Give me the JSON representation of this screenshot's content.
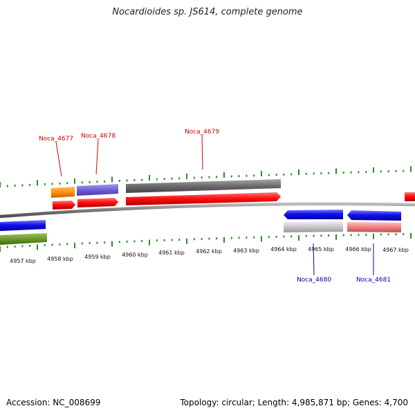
{
  "title": "Nocardioides sp. JS614, complete genome",
  "footer": {
    "accession": "Accession: NC_008699",
    "summary": "Topology: circular; Length: 4,985,871 bp; Genes: 4,700"
  },
  "scale": {
    "unit": "kbp",
    "tick_labels": [
      "4957 kbp",
      "4958 kbp",
      "4959 kbp",
      "4960 kbp",
      "4961 kbp",
      "4962 kbp",
      "4963 kbp",
      "4964 kbp",
      "4965 kbp",
      "4966 kbp",
      "4967 kbp"
    ]
  },
  "colors": {
    "forward_gene": "#ee1111",
    "reverse_gene": "#1a1ae6",
    "tick": "#2a8a2a",
    "backbone": "#808080",
    "label_forward": "#cc0000",
    "label_reverse": "#0000aa"
  },
  "gene_labels": [
    {
      "name": "Noca_4677",
      "strand": "forward"
    },
    {
      "name": "Noca_4678",
      "strand": "forward"
    },
    {
      "name": "Noca_4679",
      "strand": "forward"
    },
    {
      "name": "Noca_4680",
      "strand": "reverse"
    },
    {
      "name": "Noca_4681",
      "strand": "reverse"
    }
  ]
}
